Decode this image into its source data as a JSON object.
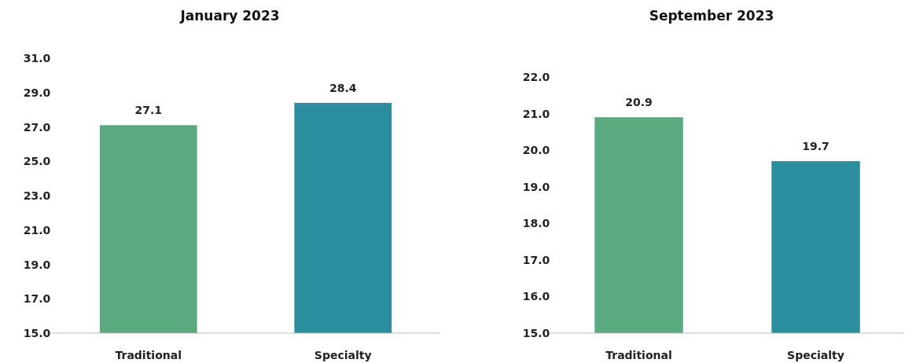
{
  "chart_data": [
    {
      "type": "bar",
      "title": "January 2023",
      "categories": [
        "Traditional",
        "Specialty"
      ],
      "values": [
        27.1,
        28.4
      ],
      "colors": [
        "#5ba97f",
        "#2a8e9e"
      ],
      "ylim": [
        15,
        31
      ],
      "yticks": [
        {
          "value": 15,
          "label": "15.0"
        },
        {
          "value": 17,
          "label": "17.0"
        },
        {
          "value": 19,
          "label": "19.0"
        },
        {
          "value": 21,
          "label": "21.0"
        },
        {
          "value": 23,
          "label": "23.0"
        },
        {
          "value": 25,
          "label": "25.0"
        },
        {
          "value": 27,
          "label": "27.0"
        },
        {
          "value": 29,
          "label": "29.0"
        },
        {
          "value": 31,
          "label": "31.0"
        }
      ],
      "data_labels": true
    },
    {
      "type": "bar",
      "title": "September 2023",
      "categories": [
        "Traditional",
        "Specialty"
      ],
      "values": [
        20.9,
        19.7
      ],
      "colors": [
        "#5ba97f",
        "#2a8e9e"
      ],
      "ylim": [
        15,
        22
      ],
      "yticks": [
        {
          "value": 15,
          "label": "15.0"
        },
        {
          "value": 16,
          "label": "16.0"
        },
        {
          "value": 17,
          "label": "17.0"
        },
        {
          "value": 18,
          "label": "18.0"
        },
        {
          "value": 19,
          "label": "19.0"
        },
        {
          "value": 20,
          "label": "20.0"
        },
        {
          "value": 21,
          "label": "21.0"
        },
        {
          "value": 22,
          "label": "22.0"
        }
      ],
      "data_labels": true
    }
  ]
}
